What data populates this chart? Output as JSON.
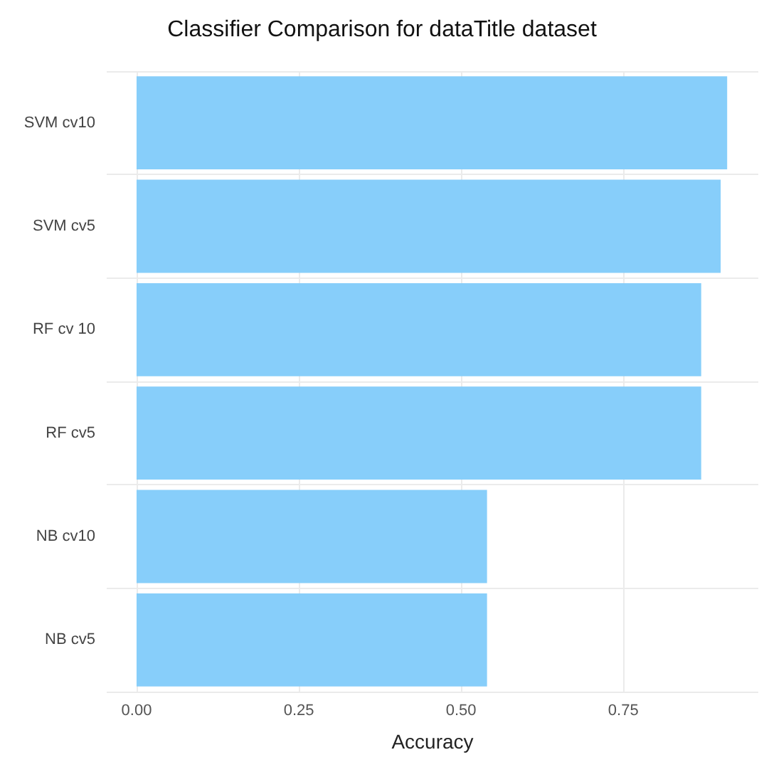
{
  "chart_data": {
    "type": "bar",
    "orientation": "horizontal",
    "title": "Classifier Comparison for dataTitle dataset",
    "xlabel": "Accuracy",
    "categories": [
      "SVM cv10",
      "SVM cv5",
      "RF cv 10",
      "RF cv5",
      "NB cv10",
      "NB cv5"
    ],
    "values": [
      0.91,
      0.9,
      0.87,
      0.87,
      0.54,
      0.54
    ],
    "color": "#87cefa",
    "xlim": [
      -0.046,
      0.958
    ],
    "xticks": [
      {
        "value": 0,
        "label": "0.00"
      },
      {
        "value": 0.25,
        "label": "0.25"
      },
      {
        "value": 0.5,
        "label": "0.50"
      },
      {
        "value": 0.75,
        "label": "0.75"
      }
    ],
    "grid": true
  }
}
